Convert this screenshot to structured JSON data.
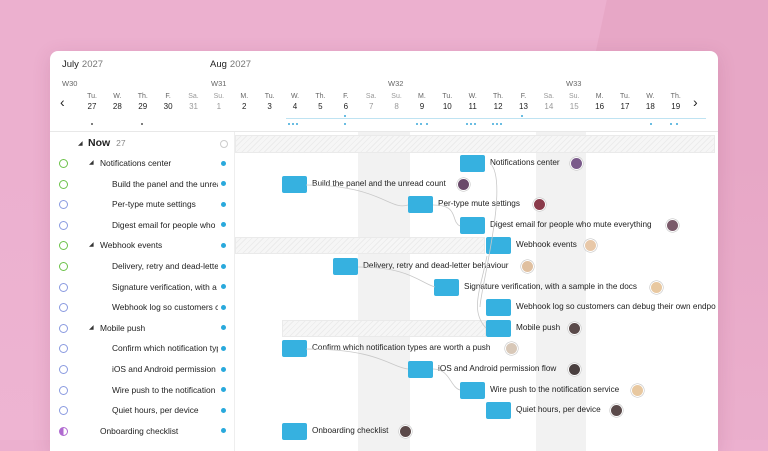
{
  "timeline": {
    "months": [
      {
        "name": "July",
        "year": "2027"
      },
      {
        "name": "Aug",
        "year": "2027"
      }
    ],
    "weeks": [
      "W30",
      "W31",
      "W32",
      "W33"
    ],
    "days": [
      {
        "dow": "Tu.",
        "num": "27",
        "weekend": false
      },
      {
        "dow": "W.",
        "num": "28",
        "weekend": false
      },
      {
        "dow": "Th.",
        "num": "29",
        "weekend": false
      },
      {
        "dow": "F.",
        "num": "30",
        "weekend": false
      },
      {
        "dow": "Sa.",
        "num": "31",
        "weekend": true
      },
      {
        "dow": "Su.",
        "num": "1",
        "weekend": true
      },
      {
        "dow": "M.",
        "num": "2",
        "weekend": false
      },
      {
        "dow": "Tu.",
        "num": "3",
        "weekend": false
      },
      {
        "dow": "W.",
        "num": "4",
        "weekend": false
      },
      {
        "dow": "Th.",
        "num": "5",
        "weekend": false
      },
      {
        "dow": "F.",
        "num": "6",
        "weekend": false
      },
      {
        "dow": "Sa.",
        "num": "7",
        "weekend": true
      },
      {
        "dow": "Su.",
        "num": "8",
        "weekend": true
      },
      {
        "dow": "M.",
        "num": "9",
        "weekend": false
      },
      {
        "dow": "Tu.",
        "num": "10",
        "weekend": false
      },
      {
        "dow": "W.",
        "num": "11",
        "weekend": false
      },
      {
        "dow": "Th.",
        "num": "12",
        "weekend": false
      },
      {
        "dow": "F.",
        "num": "13",
        "weekend": false
      },
      {
        "dow": "Sa.",
        "num": "14",
        "weekend": true
      },
      {
        "dow": "Su.",
        "num": "15",
        "weekend": true
      },
      {
        "dow": "M.",
        "num": "16",
        "weekend": false
      },
      {
        "dow": "Tu.",
        "num": "17",
        "weekend": false
      },
      {
        "dow": "W.",
        "num": "18",
        "weekend": false
      },
      {
        "dow": "Th.",
        "num": "19",
        "weekend": false
      }
    ],
    "prev_icon": "chevron-left-icon",
    "next_icon": "chevron-right-icon"
  },
  "group": {
    "title": "Now",
    "count": "27"
  },
  "rows": [
    {
      "label": "Notifications center",
      "type": "parent",
      "status": "in-progress",
      "bar_label": "Notifications center",
      "avatar": "#7a5a8a"
    },
    {
      "label": "Build the panel and the unread count",
      "type": "child",
      "status": "in-progress",
      "bar_label": "Build the panel and the unread count",
      "avatar": "#6a4a6a"
    },
    {
      "label": "Per-type mute settings",
      "type": "child",
      "status": "todo",
      "bar_label": "Per-type mute settings",
      "avatar": "#8a3a4a"
    },
    {
      "label": "Digest email for people who mute everything",
      "type": "child",
      "status": "todo",
      "bar_label": "Digest email for people who mute everything",
      "avatar": "#7a5a6a"
    },
    {
      "label": "Webhook events",
      "type": "parent",
      "status": "in-progress",
      "bar_label": "Webhook events",
      "avatar": "#e8c8a8"
    },
    {
      "label": "Delivery, retry and dead-letter behaviour",
      "type": "child",
      "status": "in-progress",
      "bar_label": "Delivery, retry and dead-letter behaviour",
      "avatar": "#e0c0a0"
    },
    {
      "label": "Signature verification, with a sample in the docs",
      "type": "child",
      "status": "todo",
      "bar_label": "Signature verification, with a sample in the docs",
      "avatar": "#e8c8a0"
    },
    {
      "label": "Webhook log so customers can debug their own endpoints",
      "type": "child",
      "status": "todo",
      "bar_label": "Webhook log so customers can debug their own endpo",
      "avatar": null
    },
    {
      "label": "Mobile push",
      "type": "parent",
      "status": "todo",
      "bar_label": "Mobile push",
      "avatar": "#5a4a4a"
    },
    {
      "label": "Confirm which notification types are worth a push",
      "type": "child",
      "status": "todo",
      "bar_label": "Confirm which notification types are worth a push",
      "avatar": "#d8c8b8"
    },
    {
      "label": "iOS and Android permission flow",
      "type": "child",
      "status": "todo",
      "bar_label": "iOS and Android permission flow",
      "avatar": "#4a4040"
    },
    {
      "label": "Wire push to the notification service",
      "type": "child",
      "status": "todo",
      "bar_label": "Wire push to the notification service",
      "avatar": "#e8c8a0"
    },
    {
      "label": "Quiet hours, per device",
      "type": "child",
      "status": "todo",
      "bar_label": "Quiet hours, per device",
      "avatar": "#5a4a4a"
    },
    {
      "label": "Onboarding checklist",
      "type": "parent-flat",
      "status": "half",
      "bar_label": "Onboarding checklist",
      "avatar": "#5a4848"
    }
  ],
  "colors": {
    "bar": "#36b1e0",
    "status_progress": "#6cc24a",
    "status_todo": "#8a9ae0",
    "status_half": "#b06ad0"
  }
}
